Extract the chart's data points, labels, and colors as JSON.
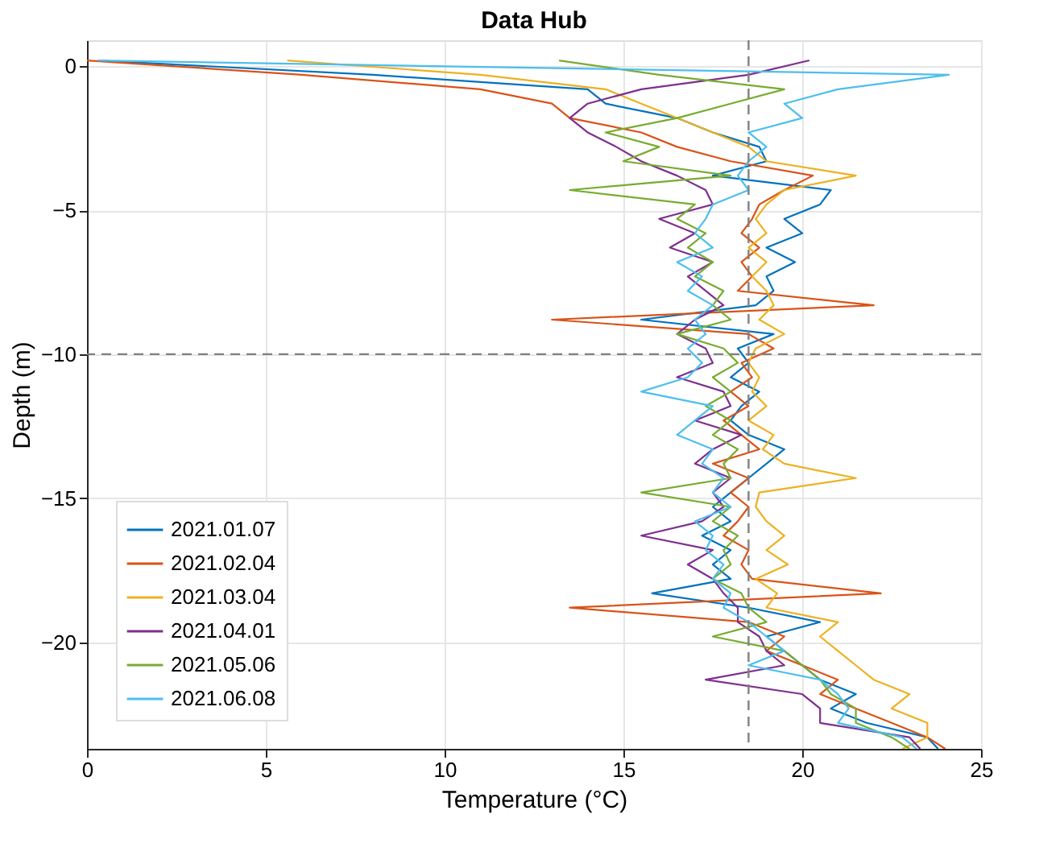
{
  "chart_data": {
    "type": "line",
    "title": "Data Hub",
    "xlabel": "Temperature (°C)",
    "ylabel": "Depth (m)",
    "xlim": [
      0,
      25
    ],
    "xticks": [
      0,
      5,
      10,
      15,
      20,
      25
    ],
    "ylim": [
      -23.7,
      0.9
    ],
    "yticks": [
      -20,
      -15,
      -10,
      -5,
      0
    ],
    "grid": true,
    "legend": "bottom left",
    "line_style": "solid",
    "ref_lines": [
      {
        "axis": "x",
        "value": 18.5,
        "color": "#808080",
        "line_style": "dashed"
      },
      {
        "axis": "y",
        "value": -10,
        "color": "#808080",
        "line_style": "dashed"
      }
    ],
    "series": [
      {
        "name": "2021.01.07",
        "color": "#0072bd",
        "x": [
          0.3,
          8,
          14,
          14.5,
          16.5,
          17.5,
          18.8,
          19,
          17.5,
          20.8,
          20.5,
          19.5,
          20,
          19,
          19.8,
          19,
          19.2,
          18.7,
          15.5,
          19.2,
          18.2,
          18.5,
          18,
          18.8,
          18.3,
          18,
          18.5,
          19.5,
          19,
          18.5,
          18,
          17.5,
          18,
          17.2,
          18,
          17.5,
          18,
          15.8,
          18.5,
          20.5,
          19,
          19.5,
          20,
          20.5,
          21.5,
          20.8,
          21.8,
          23.5,
          23.8
        ],
        "values": [
          0.2,
          -0.3,
          -0.8,
          -1.3,
          -1.8,
          -2.3,
          -2.8,
          -3.3,
          -3.8,
          -4.3,
          -4.8,
          -5.3,
          -5.8,
          -6.3,
          -6.8,
          -7.3,
          -7.8,
          -8.3,
          -8.8,
          -9.3,
          -9.8,
          -10.3,
          -10.8,
          -11.3,
          -11.8,
          -12.3,
          -12.8,
          -13.3,
          -13.8,
          -14.3,
          -14.8,
          -15.3,
          -15.8,
          -16.3,
          -16.8,
          -17.3,
          -17.8,
          -18.3,
          -18.8,
          -19.3,
          -19.8,
          -20.3,
          -20.8,
          -21.3,
          -21.8,
          -22.3,
          -22.8,
          -23.3,
          -23.7
        ]
      },
      {
        "name": "2021.02.04",
        "color": "#d95319",
        "x": [
          0,
          6,
          11,
          13,
          13.5,
          15.5,
          16.5,
          18,
          20.3,
          19.5,
          18.8,
          18.6,
          18.3,
          18.8,
          18.3,
          18.6,
          18.2,
          22,
          13,
          18.5,
          19.2,
          18.3,
          18.6,
          18,
          18.5,
          17.8,
          18.3,
          18.8,
          17.5,
          18.5,
          18,
          18.5,
          18.2,
          17.8,
          18.5,
          18.3,
          18.6,
          22.2,
          13.5,
          18.5,
          19.5,
          19,
          20,
          21,
          20.5,
          21.5,
          22.5,
          23.5,
          24
        ],
        "values": [
          0.2,
          -0.3,
          -0.8,
          -1.3,
          -1.8,
          -2.3,
          -2.8,
          -3.3,
          -3.8,
          -4.3,
          -4.8,
          -5.3,
          -5.8,
          -6.3,
          -6.8,
          -7.3,
          -7.8,
          -8.3,
          -8.8,
          -9.3,
          -9.8,
          -10.3,
          -10.8,
          -11.3,
          -11.8,
          -12.3,
          -12.8,
          -13.3,
          -13.8,
          -14.3,
          -14.8,
          -15.3,
          -15.8,
          -16.3,
          -16.8,
          -17.3,
          -17.8,
          -18.3,
          -18.8,
          -19.3,
          -19.8,
          -20.3,
          -20.8,
          -21.3,
          -21.8,
          -22.3,
          -22.8,
          -23.3,
          -23.7
        ]
      },
      {
        "name": "2021.03.04",
        "color": "#edb120",
        "x": [
          5.6,
          11,
          14.5,
          15.5,
          16.5,
          17.5,
          18.5,
          19,
          21.5,
          19.5,
          19,
          18.7,
          19,
          18.5,
          19,
          18.6,
          19,
          19.2,
          18.8,
          19.5,
          18.7,
          18.5,
          18.8,
          18.6,
          19,
          18.5,
          19.2,
          18.9,
          19.5,
          21.5,
          18.8,
          18.7,
          19,
          19.5,
          19,
          19.6,
          18.7,
          19.3,
          19,
          21,
          20.5,
          21,
          21.5,
          22,
          23,
          22.5,
          23.5,
          23.5,
          22.8
        ],
        "values": [
          0.2,
          -0.3,
          -0.8,
          -1.3,
          -1.8,
          -2.3,
          -2.8,
          -3.3,
          -3.8,
          -4.3,
          -4.8,
          -5.3,
          -5.8,
          -6.3,
          -6.8,
          -7.3,
          -7.8,
          -8.3,
          -8.8,
          -9.3,
          -9.8,
          -10.3,
          -10.8,
          -11.3,
          -11.8,
          -12.3,
          -12.8,
          -13.3,
          -13.8,
          -14.3,
          -14.8,
          -15.3,
          -15.8,
          -16.3,
          -16.8,
          -17.3,
          -17.8,
          -18.3,
          -18.8,
          -19.3,
          -19.8,
          -20.3,
          -20.8,
          -21.3,
          -21.8,
          -22.3,
          -22.8,
          -23.3,
          -23.7
        ]
      },
      {
        "name": "2021.04.01",
        "color": "#7e2f8e",
        "x": [
          20.2,
          18.5,
          15.5,
          14,
          13.5,
          14,
          14.8,
          15.5,
          16.5,
          17.3,
          17.5,
          16,
          17,
          16.3,
          17.5,
          16.8,
          17.3,
          17.8,
          17,
          16.5,
          17.3,
          17.5,
          16.5,
          17.8,
          18,
          17,
          18.3,
          17.5,
          17,
          18,
          17.5,
          17.8,
          17.2,
          15.5,
          17.5,
          16.8,
          17.5,
          17.8,
          18.2,
          18.2,
          18.8,
          19,
          19.5,
          17.3,
          20,
          20.5,
          20.5,
          23,
          23.3
        ],
        "values": [
          0.2,
          -0.3,
          -0.8,
          -1.3,
          -1.8,
          -2.3,
          -2.8,
          -3.3,
          -3.8,
          -4.3,
          -4.8,
          -5.3,
          -5.8,
          -6.3,
          -6.8,
          -7.3,
          -7.8,
          -8.3,
          -8.8,
          -9.3,
          -9.8,
          -10.3,
          -10.8,
          -11.3,
          -11.8,
          -12.3,
          -12.8,
          -13.3,
          -13.8,
          -14.3,
          -14.8,
          -15.3,
          -15.8,
          -16.3,
          -16.8,
          -17.3,
          -17.8,
          -18.3,
          -18.8,
          -19.3,
          -19.8,
          -20.3,
          -20.8,
          -21.3,
          -21.8,
          -22.3,
          -22.8,
          -23.3,
          -23.7
        ]
      },
      {
        "name": "2021.05.06",
        "color": "#77ac30",
        "x": [
          13.2,
          16,
          19.5,
          18,
          16.5,
          14.5,
          16,
          15,
          18,
          13.5,
          17,
          16.5,
          17.3,
          16.8,
          17.5,
          17,
          17.8,
          17.5,
          18,
          16.5,
          17.8,
          18.2,
          17.5,
          18,
          17.3,
          18,
          17.5,
          18.2,
          17.8,
          18,
          15.5,
          18,
          17.5,
          18.2,
          17.8,
          18,
          17.5,
          18.3,
          18.5,
          19,
          17.5,
          19.5,
          20,
          20.5,
          20.8,
          21.5,
          21.5,
          22.5,
          23
        ],
        "values": [
          0.2,
          -0.3,
          -0.8,
          -1.3,
          -1.8,
          -2.3,
          -2.8,
          -3.3,
          -3.8,
          -4.3,
          -4.8,
          -5.3,
          -5.8,
          -6.3,
          -6.8,
          -7.3,
          -7.8,
          -8.3,
          -8.8,
          -9.3,
          -9.8,
          -10.3,
          -10.8,
          -11.3,
          -11.8,
          -12.3,
          -12.8,
          -13.3,
          -13.8,
          -14.3,
          -14.8,
          -15.3,
          -15.8,
          -16.3,
          -16.8,
          -17.3,
          -17.8,
          -18.3,
          -18.8,
          -19.3,
          -19.8,
          -20.3,
          -20.8,
          -21.3,
          -21.8,
          -22.3,
          -22.8,
          -23.3,
          -23.7
        ]
      },
      {
        "name": "2021.06.08",
        "color": "#4dbeee",
        "x": [
          0.3,
          24.1,
          21,
          19.5,
          20,
          18.5,
          19,
          18.5,
          18.2,
          18.5,
          17.5,
          17.3,
          17,
          17.5,
          16.5,
          17.2,
          16.8,
          17.5,
          17,
          17.3,
          16.8,
          17.2,
          16.8,
          15.5,
          17.5,
          17,
          16.5,
          17.5,
          17.2,
          17.8,
          17.5,
          18,
          17,
          17.5,
          17.3,
          17.8,
          17.5,
          18,
          17.8,
          18.5,
          19,
          19.5,
          18.5,
          20.5,
          21,
          21.3,
          21,
          22.8,
          23.2
        ],
        "values": [
          0.2,
          -0.3,
          -0.8,
          -1.3,
          -1.8,
          -2.3,
          -2.8,
          -3.3,
          -3.8,
          -4.3,
          -4.8,
          -5.3,
          -5.8,
          -6.3,
          -6.8,
          -7.3,
          -7.8,
          -8.3,
          -8.8,
          -9.3,
          -9.8,
          -10.3,
          -10.8,
          -11.3,
          -11.8,
          -12.3,
          -12.8,
          -13.3,
          -13.8,
          -14.3,
          -14.8,
          -15.3,
          -15.8,
          -16.3,
          -16.8,
          -17.3,
          -17.8,
          -18.3,
          -18.8,
          -19.3,
          -19.8,
          -20.3,
          -20.8,
          -21.3,
          -21.8,
          -22.3,
          -22.8,
          -23.3,
          -23.7
        ]
      }
    ]
  }
}
